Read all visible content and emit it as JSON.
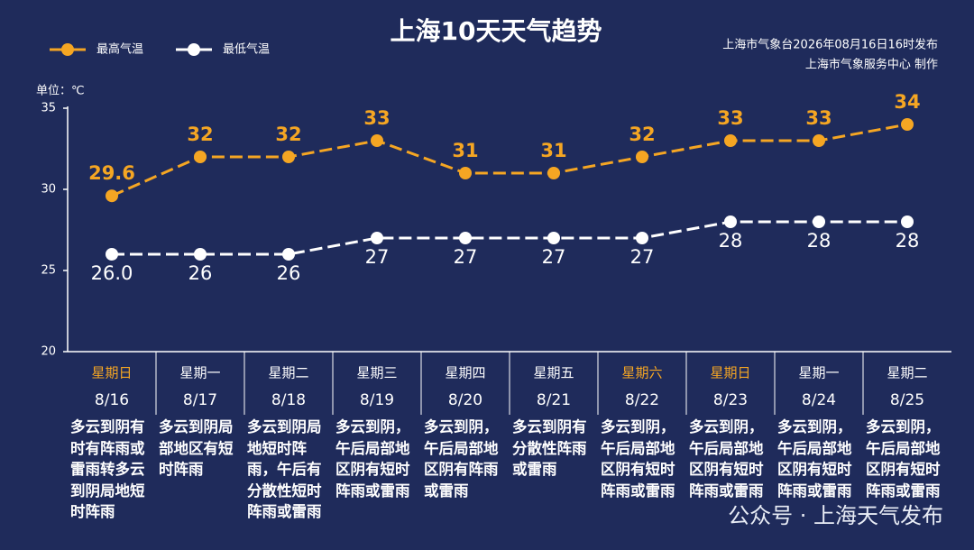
{
  "chart_data": {
    "type": "line",
    "title": "上海10天天气趋势",
    "notes": [
      "上海市气象台2026年08月16日16时发布",
      "上海市气象服务中心  制作"
    ],
    "y_unit": "单位：℃",
    "categories": [
      "8/16",
      "8/17",
      "8/18",
      "8/19",
      "8/20",
      "8/21",
      "8/22",
      "8/23",
      "8/24",
      "8/25"
    ],
    "weekdays": [
      "星期日",
      "星期一",
      "星期二",
      "星期三",
      "星期四",
      "星期五",
      "星期六",
      "星期日",
      "星期一",
      "星期二"
    ],
    "weekday_colors": [
      "#f5a623",
      "#ffffff",
      "#ffffff",
      "#ffffff",
      "#ffffff",
      "#ffffff",
      "#f5a623",
      "#f5a623",
      "#ffffff",
      "#ffffff"
    ],
    "descriptions": [
      "多云到阴有时有阵雨或雷雨转多云到阴局地短时阵雨",
      "多云到阴局部地区有短时阵雨",
      "多云到阴局地短时阵雨，午后有分散性短时阵雨或雷雨",
      "多云到阴，午后局部地区阴有短时阵雨或雷雨",
      "多云到阴，午后局部地区阴有阵雨或雷雨",
      "多云到阴有分散性阵雨或雷雨",
      "多云到阴，午后局部地区阴有短时阵雨或雷雨",
      "多云到阴，午后局部地区阴有短时阵雨或雷雨",
      "多云到阴，午后局部地区阴有短时阵雨或雷雨",
      "多云到阴，午后局部地区阴有短时阵雨或雷雨"
    ],
    "series": [
      {
        "name": "最高气温",
        "color": "#f5a623",
        "values": [
          29.6,
          32,
          32,
          33,
          31,
          31,
          32,
          33,
          33,
          34
        ]
      },
      {
        "name": "最低气温",
        "color": "#ffffff",
        "values": [
          26.0,
          26,
          26,
          27,
          27,
          27,
          27,
          28,
          28,
          28
        ],
        "value_labels": [
          "26.0",
          "26",
          "26",
          "27",
          "27",
          "27",
          "27",
          "28",
          "28",
          "28"
        ]
      }
    ],
    "ylim": [
      20,
      35
    ],
    "yticks": [
      20,
      25,
      30,
      35
    ],
    "watermark": "公众号 · 上海天气发布"
  }
}
